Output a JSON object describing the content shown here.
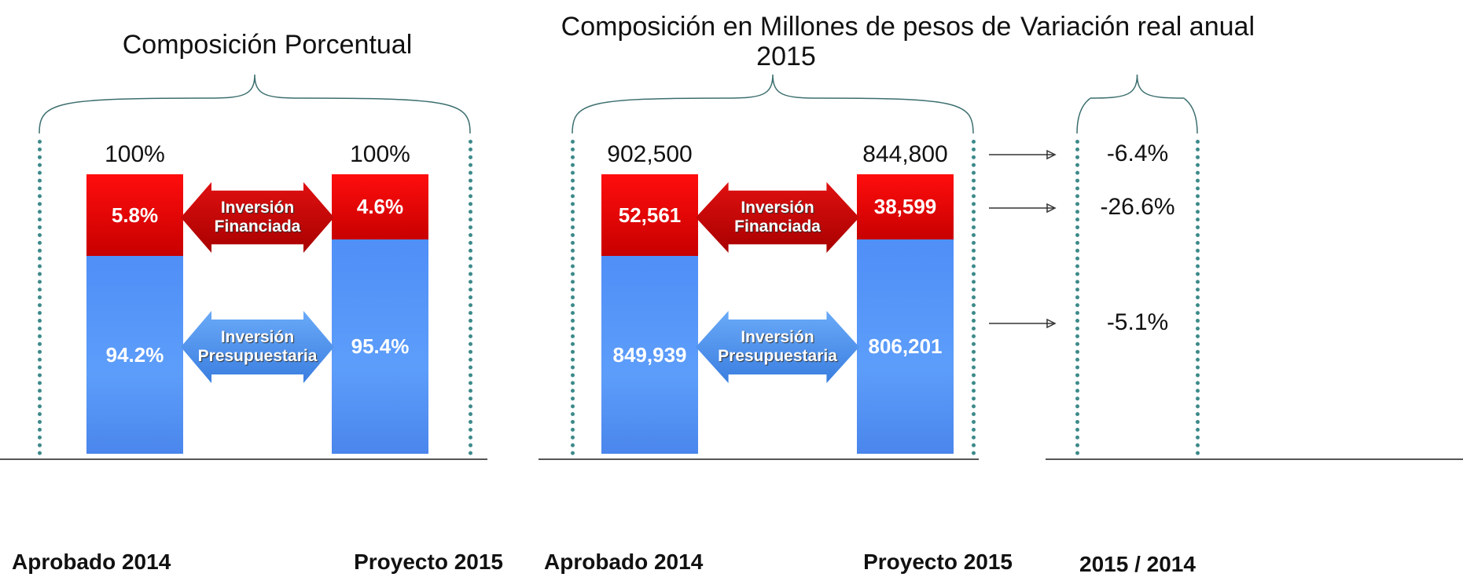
{
  "panels": [
    {
      "title": "Composición Porcentual",
      "financiada_label": "Inversión Financiada",
      "presupuestaria_label": "Inversión Presupuestaria",
      "columns": [
        {
          "label": "Aprobado 2014",
          "total": "100%",
          "financiada": "5.8%",
          "presupuestaria": "94.2%"
        },
        {
          "label": "Proyecto 2015",
          "total": "100%",
          "financiada": "4.6%",
          "presupuestaria": "95.4%"
        }
      ]
    },
    {
      "title": "Composición en Millones de pesos de 2015",
      "financiada_label": "Inversión Financiada",
      "presupuestaria_label": "Inversión Presupuestaria",
      "columns": [
        {
          "label": "Aprobado 2014",
          "total": "902,500",
          "financiada": "52,561",
          "presupuestaria": "849,939"
        },
        {
          "label": "Proyecto 2015",
          "total": "844,800",
          "financiada": "38,599",
          "presupuestaria": "806,201"
        }
      ]
    }
  ],
  "variation": {
    "title": "Variación real anual",
    "values": [
      "-6.4%",
      "-26.6%",
      "-5.1%"
    ],
    "label": "2015 / 2014"
  }
}
